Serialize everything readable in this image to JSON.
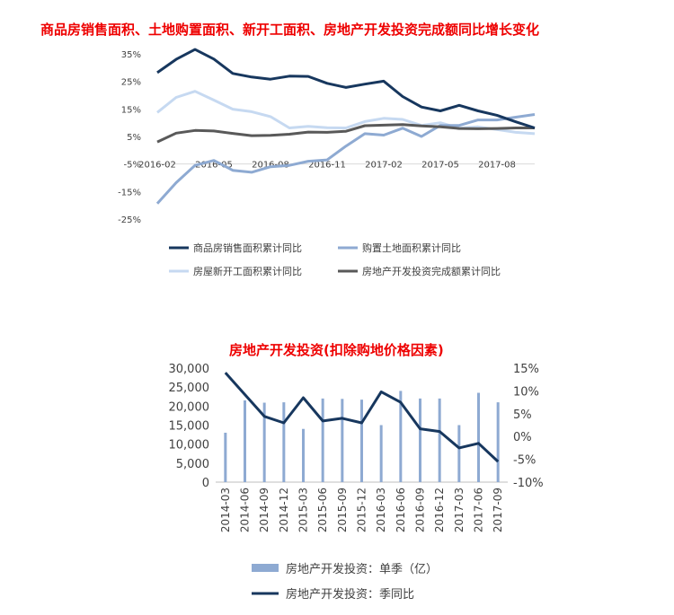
{
  "chart_data": [
    {
      "type": "line",
      "title": "商品房销售面积、土地购置面积、新开工面积、房地产开发投资完成额同比增长变化",
      "x_ticks": [
        "2016-02",
        "2016-05",
        "2016-08",
        "2016-11",
        "2017-02",
        "2017-05",
        "2017-08"
      ],
      "y_ticks": [
        "35%",
        "25%",
        "15%",
        "5%",
        "-5%",
        "-15%",
        "-25%"
      ],
      "ylim": [
        -25,
        35
      ],
      "legend_position": "bottom",
      "series": [
        {
          "name": "商品房销售面积累计同比",
          "color": "#17375e",
          "values": [
            28.2,
            33,
            36.6,
            33.1,
            27.9,
            26.6,
            25.8,
            26.9,
            26.8,
            24.3,
            22.8,
            24,
            25.1,
            19.5,
            15.7,
            14.3,
            16.3,
            14.3,
            12.7,
            10.3,
            8.1
          ]
        },
        {
          "name": "购置土地面积累计同比",
          "color": "#8eaad2",
          "values": [
            -19.4,
            -11.8,
            -5.5,
            -3.7,
            -7.3,
            -8,
            -6,
            -5.5,
            -4,
            -3.5,
            1.5,
            6,
            5.5,
            8,
            5,
            9,
            9,
            11,
            11,
            12,
            13
          ]
        },
        {
          "name": "房屋新开工面积累计同比",
          "color": "#c6d9f1",
          "values": [
            13.7,
            19.2,
            21.4,
            18.2,
            14.9,
            14,
            12.2,
            8.1,
            8.7,
            8.2,
            8.1,
            10.4,
            11.6,
            11.2,
            9,
            10,
            8,
            8.5,
            7.5,
            6.5,
            6
          ]
        },
        {
          "name": "房地产开发投资完成额累计同比",
          "color": "#595959",
          "values": [
            3,
            6.2,
            7.2,
            7,
            6.1,
            5.3,
            5.4,
            5.8,
            6.6,
            6.5,
            6.9,
            8.9,
            9.1,
            9.3,
            8.8,
            8.5,
            7.9,
            7.8,
            7.9,
            8.1,
            8.1
          ]
        }
      ]
    },
    {
      "type": "bar-line",
      "title": "房地产开发投资(扣除购地价格因素)",
      "categories": [
        "2014-03",
        "2014-06",
        "2014-09",
        "2014-12",
        "2015-03",
        "2015-06",
        "2015-09",
        "2015-12",
        "2016-03",
        "2016-06",
        "2016-09",
        "2016-12",
        "2017-03",
        "2017-06",
        "2017-09"
      ],
      "left_axis": {
        "ticks": [
          "30,000",
          "25,000",
          "20,000",
          "15,000",
          "10,000",
          "5,000",
          "0"
        ],
        "ylim": [
          0,
          30000
        ]
      },
      "right_axis": {
        "ticks": [
          "15%",
          "10%",
          "5%",
          "0%",
          "-5%",
          "-10%"
        ],
        "ylim": [
          -10,
          15
        ]
      },
      "legend_position": "bottom",
      "series": [
        {
          "name": "房地产开发投资：单季（亿）",
          "kind": "bar",
          "axis": "left",
          "color": "#8eaad2",
          "values": [
            13000,
            21500,
            20900,
            21000,
            14000,
            22000,
            21900,
            21700,
            15000,
            24000,
            22000,
            22000,
            15000,
            23500,
            21000
          ]
        },
        {
          "name": "房地产开发投资：季同比",
          "kind": "line",
          "axis": "right",
          "color": "#17375e",
          "values": [
            14,
            9.2,
            4.4,
            3,
            8.5,
            3.4,
            4,
            3,
            9.8,
            7.5,
            1.7,
            1.1,
            -2.5,
            -1.5,
            -5.5
          ]
        }
      ]
    }
  ]
}
